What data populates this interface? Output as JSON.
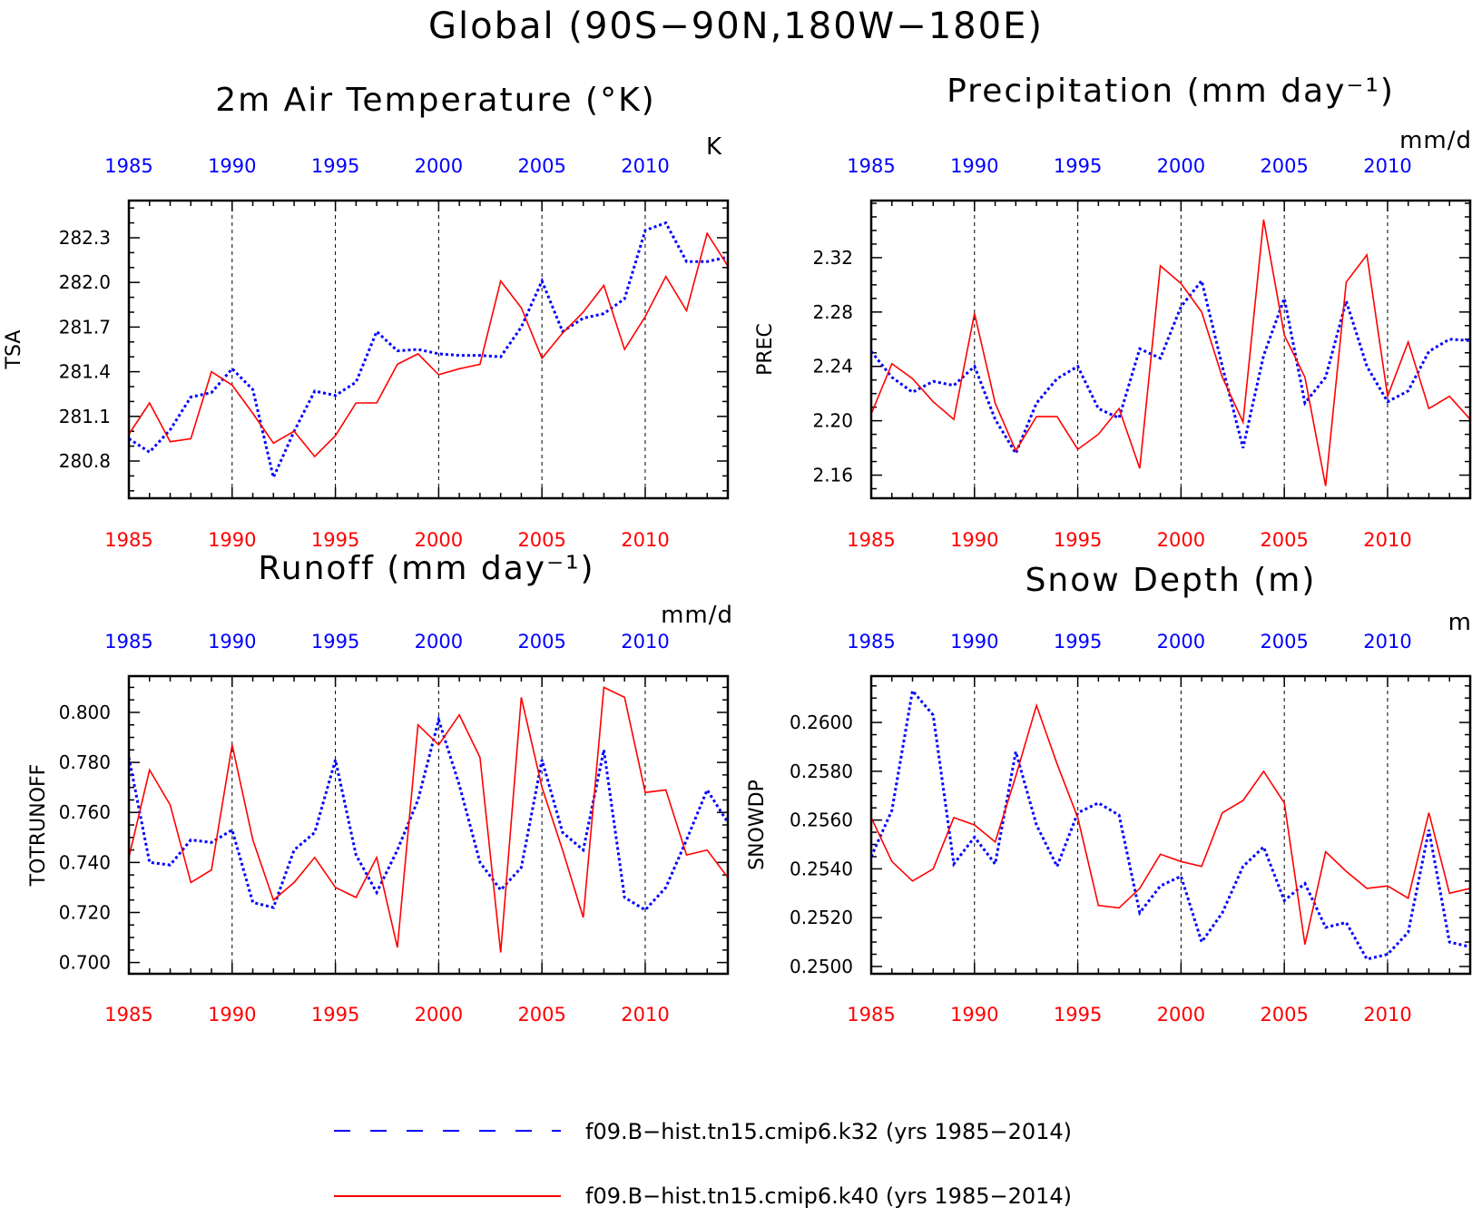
{
  "figure": {
    "title": "Global (90S−90N,180W−180E)"
  },
  "legend": [
    {
      "name": "f09.B−hist.tn15.cmip6.k32 (yrs 1985−2014)",
      "color": "#0000ff",
      "style": "dashed"
    },
    {
      "name": "f09.B−hist.tn15.cmip6.k40 (yrs 1985−2014)",
      "color": "#ff0000",
      "style": "solid"
    }
  ],
  "chart_data": [
    {
      "type": "line",
      "title": "2m Air Temperature (°K)",
      "units": "K",
      "ylabel": "TSA",
      "xlim": [
        1985,
        2014
      ],
      "ylim": [
        280.55,
        282.55
      ],
      "x_ticks": [
        1985,
        1990,
        1995,
        2000,
        2005,
        2010
      ],
      "y_ticks": [
        280.8,
        281.1,
        281.4,
        281.7,
        282.0,
        282.3
      ],
      "y_tick_labels": [
        "280.8",
        "281.1",
        "281.4",
        "281.7",
        "282.0",
        "282.3"
      ],
      "y_minor_step": 0.1,
      "x": [
        1985,
        1986,
        1987,
        1988,
        1989,
        1990,
        1991,
        1992,
        1993,
        1994,
        1995,
        1996,
        1997,
        1998,
        1999,
        2000,
        2001,
        2002,
        2003,
        2004,
        2005,
        2006,
        2007,
        2008,
        2009,
        2010,
        2011,
        2012,
        2013,
        2014
      ],
      "series": [
        {
          "name": "f09.B−hist.tn15.cmip6.k32",
          "color": "#0000ff",
          "style": "dashed",
          "values": [
            280.95,
            280.86,
            281.01,
            281.23,
            281.26,
            281.42,
            281.28,
            280.69,
            281.0,
            281.27,
            281.24,
            281.33,
            281.67,
            281.54,
            281.55,
            281.52,
            281.51,
            281.51,
            281.5,
            281.7,
            282.01,
            281.67,
            281.76,
            281.79,
            281.89,
            282.35,
            282.4,
            282.14,
            282.14,
            282.17
          ]
        },
        {
          "name": "f09.B−hist.tn15.cmip6.k40",
          "color": "#ff0000",
          "style": "solid",
          "values": [
            280.98,
            281.19,
            280.93,
            280.95,
            281.4,
            281.31,
            281.12,
            280.92,
            281.0,
            280.83,
            280.97,
            281.19,
            281.19,
            281.45,
            281.52,
            281.38,
            281.42,
            281.45,
            282.01,
            281.83,
            281.49,
            281.66,
            281.8,
            281.98,
            281.55,
            281.77,
            282.04,
            281.81,
            282.33,
            282.11
          ]
        }
      ]
    },
    {
      "type": "line",
      "title": "Precipitation (mm day⁻¹)",
      "units": "mm/d",
      "ylabel": "PREC",
      "xlim": [
        1985,
        2014
      ],
      "ylim": [
        2.143,
        2.362
      ],
      "x_ticks": [
        1985,
        1990,
        1995,
        2000,
        2005,
        2010
      ],
      "y_ticks": [
        2.16,
        2.2,
        2.24,
        2.28,
        2.32
      ],
      "y_tick_labels": [
        "2.16",
        "2.20",
        "2.24",
        "2.28",
        "2.32"
      ],
      "y_minor_step": 0.01,
      "x": [
        1985,
        1986,
        1987,
        1988,
        1989,
        1990,
        1991,
        1992,
        1993,
        1994,
        1995,
        1996,
        1997,
        1998,
        1999,
        2000,
        2001,
        2002,
        2003,
        2004,
        2005,
        2006,
        2007,
        2008,
        2009,
        2010,
        2011,
        2012,
        2013,
        2014
      ],
      "series": [
        {
          "name": "f09.B−hist.tn15.cmip6.k32",
          "color": "#0000ff",
          "style": "dashed",
          "values": [
            2.251,
            2.232,
            2.221,
            2.229,
            2.226,
            2.24,
            2.201,
            2.176,
            2.213,
            2.231,
            2.24,
            2.209,
            2.202,
            2.253,
            2.246,
            2.284,
            2.303,
            2.24,
            2.18,
            2.248,
            2.29,
            2.213,
            2.232,
            2.288,
            2.24,
            2.214,
            2.222,
            2.251,
            2.26,
            2.259
          ]
        },
        {
          "name": "f09.B−hist.tn15.cmip6.k40",
          "color": "#ff0000",
          "style": "solid",
          "values": [
            2.205,
            2.242,
            2.231,
            2.214,
            2.201,
            2.279,
            2.213,
            2.178,
            2.203,
            2.203,
            2.179,
            2.19,
            2.209,
            2.165,
            2.314,
            2.301,
            2.28,
            2.232,
            2.199,
            2.348,
            2.263,
            2.232,
            2.152,
            2.302,
            2.322,
            2.218,
            2.258,
            2.209,
            2.218,
            2.201
          ]
        }
      ]
    },
    {
      "type": "line",
      "title": "Runoff (mm day⁻¹)",
      "units": "mm/d",
      "ylabel": "TOTRUNOFF",
      "xlim": [
        1985,
        2014
      ],
      "ylim": [
        0.6955,
        0.8145
      ],
      "x_ticks": [
        1985,
        1990,
        1995,
        2000,
        2005,
        2010
      ],
      "y_ticks": [
        0.7,
        0.72,
        0.74,
        0.76,
        0.78,
        0.8
      ],
      "y_tick_labels": [
        "0.700",
        "0.720",
        "0.740",
        "0.760",
        "0.780",
        "0.800"
      ],
      "y_minor_step": 0.005,
      "x": [
        1985,
        1986,
        1987,
        1988,
        1989,
        1990,
        1991,
        1992,
        1993,
        1994,
        1995,
        1996,
        1997,
        1998,
        1999,
        2000,
        2001,
        2002,
        2003,
        2004,
        2005,
        2006,
        2007,
        2008,
        2009,
        2010,
        2011,
        2012,
        2013,
        2014
      ],
      "series": [
        {
          "name": "f09.B−hist.tn15.cmip6.k32",
          "color": "#0000ff",
          "style": "dashed",
          "values": [
            0.782,
            0.74,
            0.739,
            0.749,
            0.748,
            0.753,
            0.724,
            0.722,
            0.745,
            0.752,
            0.781,
            0.743,
            0.728,
            0.745,
            0.765,
            0.797,
            0.771,
            0.74,
            0.729,
            0.738,
            0.781,
            0.752,
            0.745,
            0.785,
            0.726,
            0.721,
            0.73,
            0.749,
            0.769,
            0.756
          ]
        },
        {
          "name": "f09.B−hist.tn15.cmip6.k40",
          "color": "#ff0000",
          "style": "solid",
          "values": [
            0.742,
            0.777,
            0.763,
            0.732,
            0.737,
            0.787,
            0.749,
            0.725,
            0.732,
            0.742,
            0.73,
            0.726,
            0.742,
            0.706,
            0.795,
            0.787,
            0.799,
            0.782,
            0.704,
            0.806,
            0.77,
            0.745,
            0.718,
            0.81,
            0.806,
            0.768,
            0.769,
            0.743,
            0.745,
            0.734
          ]
        }
      ]
    },
    {
      "type": "line",
      "title": "Snow Depth (m)",
      "units": "m",
      "ylabel": "SNOWDP",
      "xlim": [
        1985,
        2014
      ],
      "ylim": [
        0.2497,
        0.2619
      ],
      "x_ticks": [
        1985,
        1990,
        1995,
        2000,
        2005,
        2010
      ],
      "y_ticks": [
        0.25,
        0.252,
        0.254,
        0.256,
        0.258,
        0.26
      ],
      "y_tick_labels": [
        "0.2500",
        "0.2520",
        "0.2540",
        "0.2560",
        "0.2580",
        "0.2600"
      ],
      "y_minor_step": 0.0005,
      "x": [
        1985,
        1986,
        1987,
        1988,
        1989,
        1990,
        1991,
        1992,
        1993,
        1994,
        1995,
        1996,
        1997,
        1998,
        1999,
        2000,
        2001,
        2002,
        2003,
        2004,
        2005,
        2006,
        2007,
        2008,
        2009,
        2010,
        2011,
        2012,
        2013,
        2014
      ],
      "series": [
        {
          "name": "f09.B−hist.tn15.cmip6.k32",
          "color": "#0000ff",
          "style": "dashed",
          "values": [
            0.2545,
            0.2564,
            0.2613,
            0.2603,
            0.2542,
            0.2553,
            0.2542,
            0.2588,
            0.2558,
            0.2541,
            0.2563,
            0.2567,
            0.2562,
            0.2522,
            0.2533,
            0.2537,
            0.251,
            0.2522,
            0.2541,
            0.2549,
            0.2527,
            0.2534,
            0.2516,
            0.2518,
            0.2503,
            0.2505,
            0.2514,
            0.2556,
            0.251,
            0.2508
          ]
        },
        {
          "name": "f09.B−hist.tn15.cmip6.k40",
          "color": "#ff0000",
          "style": "solid",
          "values": [
            0.2561,
            0.2543,
            0.2535,
            0.254,
            0.2561,
            0.2558,
            0.2551,
            0.2578,
            0.2607,
            0.2583,
            0.2561,
            0.2525,
            0.2524,
            0.2532,
            0.2546,
            0.2543,
            0.2541,
            0.2563,
            0.2568,
            0.258,
            0.2567,
            0.2509,
            0.2547,
            0.2539,
            0.2532,
            0.2533,
            0.2528,
            0.2563,
            0.253,
            0.2532
          ]
        }
      ]
    }
  ]
}
